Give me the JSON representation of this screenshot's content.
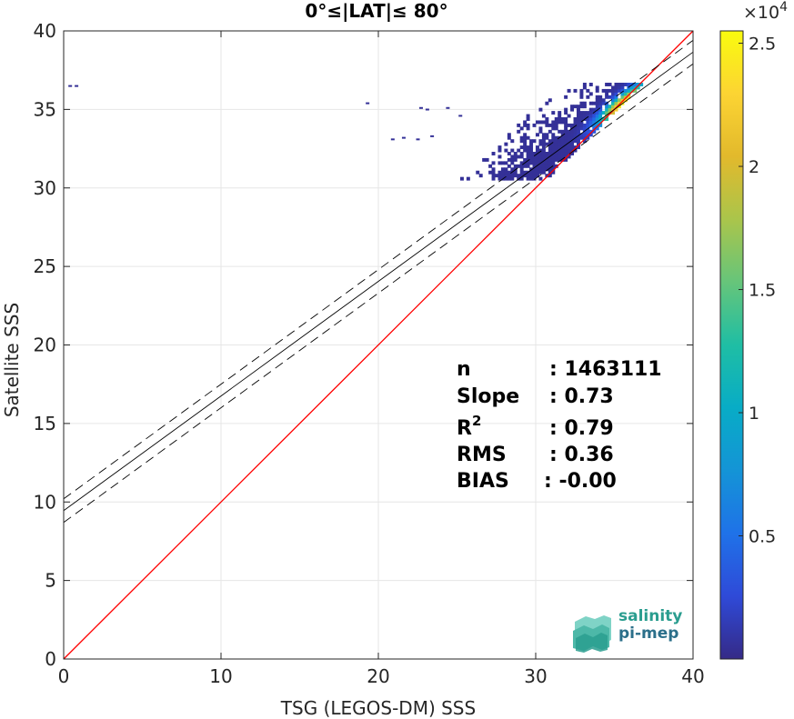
{
  "chart_data": {
    "type": "heatmap",
    "title": "0°≤|LAT|≤ 80°",
    "xlabel": "TSG (LEGOS-DM) SSS",
    "ylabel": "Satellite SSS",
    "xlim": [
      0,
      40
    ],
    "ylim": [
      0,
      40
    ],
    "x_ticks": [
      "0",
      "10",
      "20",
      "30",
      "40"
    ],
    "y_ticks": [
      "0",
      "5",
      "10",
      "15",
      "20",
      "25",
      "30",
      "35",
      "40"
    ],
    "grid": true,
    "identity_line": {
      "x": [
        0,
        40
      ],
      "y": [
        0,
        40
      ],
      "color": "#ff0000"
    },
    "fit_line": {
      "intercept": 9.45,
      "slope": 0.73,
      "color": "#000000"
    },
    "fit_band": {
      "offset": 0.75,
      "style": "dashed"
    },
    "density_cluster": {
      "x_range": [
        24,
        37
      ],
      "y_range": [
        30.5,
        36.7
      ],
      "peak": [
        35.5,
        35.4
      ]
    },
    "colorbar": {
      "range": [
        0,
        25500
      ],
      "ticks": [
        "0.5",
        "1",
        "1.5",
        "2",
        "2.5"
      ],
      "tick_values": [
        5000,
        10000,
        15000,
        20000,
        25000
      ],
      "multiplier": "×10",
      "exponent": "4",
      "colormap": "parula"
    },
    "stats": [
      {
        "label": "n",
        "value": ": 1463111"
      },
      {
        "label": "Slope",
        "value": ": 0.73"
      },
      {
        "label": "R",
        "sup": "2",
        "value": ": 0.79"
      },
      {
        "label": "RMS",
        "value": ": 0.36"
      },
      {
        "label": "BIAS",
        "value": ": -0.00"
      }
    ]
  },
  "logo": {
    "line1": "salinity",
    "line2": "pi-mep"
  },
  "colors": {
    "identity": "#ff0000",
    "fit": "#000000",
    "grid": "#e6e6e6",
    "logo": "#3aa89a"
  }
}
